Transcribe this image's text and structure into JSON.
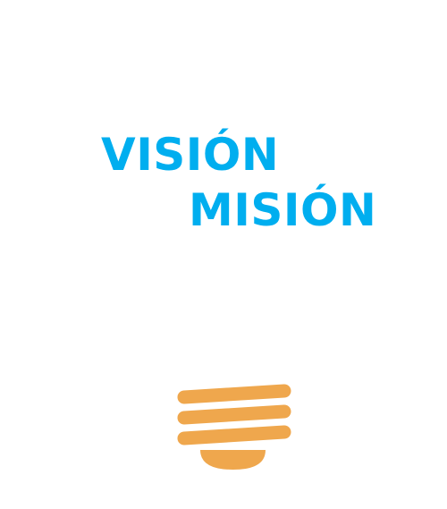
{
  "headlines": {
    "vision": "VISIÓN",
    "mision": "MISIÓN"
  },
  "colors": {
    "headline": "#00AEEF",
    "bulb": "#EFA74D",
    "background": "#FFFFFF"
  },
  "icons": {
    "bulb_base": "lightbulb-base-icon"
  }
}
